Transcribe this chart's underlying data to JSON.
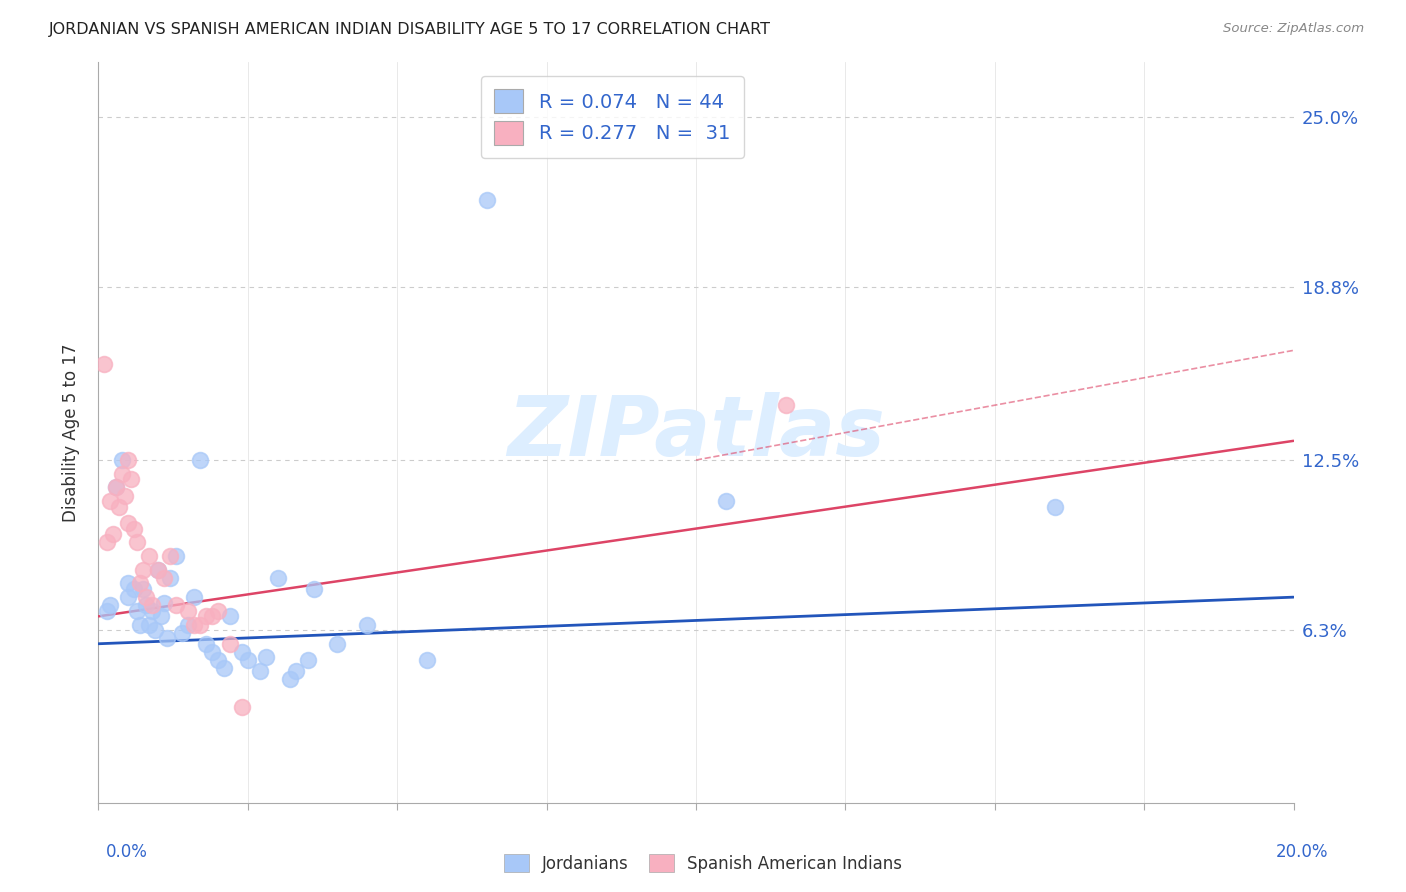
{
  "title": "JORDANIAN VS SPANISH AMERICAN INDIAN DISABILITY AGE 5 TO 17 CORRELATION CHART",
  "source": "Source: ZipAtlas.com",
  "ylabel": "Disability Age 5 to 17",
  "xlim": [
    0.0,
    20.0
  ],
  "ylim": [
    0.0,
    27.0
  ],
  "ytick_values": [
    6.3,
    12.5,
    18.8,
    25.0
  ],
  "xtick_positions": [
    0.0,
    2.5,
    5.0,
    7.5,
    10.0,
    12.5,
    15.0,
    17.5,
    20.0
  ],
  "r_jordanian": 0.074,
  "n_jordanian": 44,
  "r_spanish": 0.277,
  "n_spanish": 31,
  "color_jordanian": "#a8c8f8",
  "color_spanish": "#f8b0c0",
  "color_line_jordanian": "#2255bb",
  "color_line_spanish": "#dd4466",
  "color_legend_text": "#3366cc",
  "color_grid": "#cccccc",
  "color_title": "#222222",
  "color_source": "#888888",
  "watermark_color": "#ddeeff",
  "jordanian_x": [
    0.15,
    0.2,
    0.3,
    0.4,
    0.5,
    0.5,
    0.6,
    0.65,
    0.7,
    0.75,
    0.8,
    0.85,
    0.9,
    0.95,
    1.0,
    1.05,
    1.1,
    1.15,
    1.2,
    1.3,
    1.4,
    1.5,
    1.6,
    1.7,
    1.8,
    1.9,
    2.0,
    2.1,
    2.2,
    2.4,
    2.5,
    2.7,
    2.8,
    3.0,
    3.2,
    3.3,
    3.5,
    3.6,
    4.0,
    4.5,
    5.5,
    6.5,
    10.5,
    16.0
  ],
  "jordanian_y": [
    7.0,
    7.2,
    11.5,
    12.5,
    7.5,
    8.0,
    7.8,
    7.0,
    6.5,
    7.8,
    7.2,
    6.5,
    7.0,
    6.3,
    8.5,
    6.8,
    7.3,
    6.0,
    8.2,
    9.0,
    6.2,
    6.5,
    7.5,
    12.5,
    5.8,
    5.5,
    5.2,
    4.9,
    6.8,
    5.5,
    5.2,
    4.8,
    5.3,
    8.2,
    4.5,
    4.8,
    5.2,
    7.8,
    5.8,
    6.5,
    5.2,
    22.0,
    11.0,
    10.8
  ],
  "spanish_x": [
    0.1,
    0.15,
    0.2,
    0.25,
    0.3,
    0.35,
    0.4,
    0.45,
    0.5,
    0.55,
    0.6,
    0.65,
    0.7,
    0.75,
    0.8,
    0.85,
    0.9,
    1.0,
    1.1,
    1.3,
    1.5,
    1.6,
    1.8,
    2.0,
    2.2,
    2.4,
    0.5,
    1.2,
    1.7,
    1.9,
    11.5
  ],
  "spanish_y": [
    16.0,
    9.5,
    11.0,
    9.8,
    11.5,
    10.8,
    12.0,
    11.2,
    12.5,
    11.8,
    10.0,
    9.5,
    8.0,
    8.5,
    7.5,
    9.0,
    7.2,
    8.5,
    8.2,
    7.2,
    7.0,
    6.5,
    6.8,
    7.0,
    5.8,
    3.5,
    10.2,
    9.0,
    6.5,
    6.8,
    14.5
  ],
  "line_j_x0": 0.0,
  "line_j_y0": 5.8,
  "line_j_x1": 20.0,
  "line_j_y1": 7.5,
  "line_s_x0": 0.0,
  "line_s_y0": 6.8,
  "line_s_x1": 20.0,
  "line_s_y1": 13.2,
  "dash_x0": 10.0,
  "dash_y0": 12.5,
  "dash_x1": 20.0,
  "dash_y1": 16.5
}
